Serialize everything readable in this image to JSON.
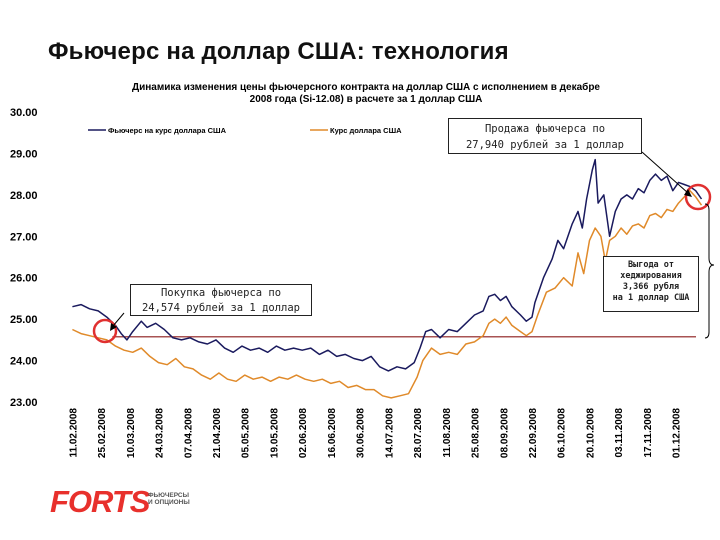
{
  "slide": {
    "title": "Фьючерс на доллар США: технология"
  },
  "annotations": {
    "buy": [
      "Покупка фьючерса по",
      "24,574 рублей за 1 доллар"
    ],
    "sell": [
      "Продажа фьючерса по",
      "27,940 рублей за 1 доллар"
    ],
    "benefit": [
      "Выгода от",
      "хеджирования",
      "3,366 рубля",
      "на 1 доллар США"
    ]
  },
  "logo": {
    "word": "FORTS",
    "sub": [
      "ФЬЮЧЕРСЫ",
      "И ОПЦИОНЫ"
    ]
  },
  "colors": {
    "futures": "#1a1a5e",
    "spot": "#e08a2a",
    "hedge_line": "#8b1a1a",
    "circle": "#e03030",
    "logo": "#e8302c"
  },
  "chart_data": {
    "type": "line",
    "title": [
      "Динамика изменения цены фьючерсного контракта на доллар США  с исполнением в декабре",
      "2008 года (Si-12.08) в расчете за 1 доллар США"
    ],
    "ylim": [
      23,
      30
    ],
    "yticks": [
      "30.00",
      "29.00",
      "28.00",
      "27.00",
      "26.00",
      "25.00",
      "24.00",
      "23.00"
    ],
    "x_ticks": [
      "11.02.2008",
      "25.02.2008",
      "10.03.2008",
      "24.03.2008",
      "07.04.2008",
      "21.04.2008",
      "05.05.2008",
      "19.05.2008",
      "02.06.2008",
      "16.06.2008",
      "30.06.2008",
      "14.07.2008",
      "28.07.2008",
      "11.08.2008",
      "25.08.2008",
      "08.09.2008",
      "22.09.2008",
      "06.10.2008",
      "20.10.2008",
      "03.11.2008",
      "17.11.2008",
      "01.12.2008"
    ],
    "legend": [
      "Фьючерс на курс доллара США",
      "Курс доллара США"
    ],
    "hedge_level": 24.574,
    "series": [
      {
        "name": "Фьючерс на курс доллара США",
        "points": [
          [
            0,
            25.3
          ],
          [
            0.3,
            25.35
          ],
          [
            0.6,
            25.25
          ],
          [
            0.9,
            25.2
          ],
          [
            1.2,
            25.05
          ],
          [
            1.5,
            24.85
          ],
          [
            1.7,
            24.65
          ],
          [
            1.9,
            24.5
          ],
          [
            2.1,
            24.7
          ],
          [
            2.4,
            24.95
          ],
          [
            2.6,
            24.8
          ],
          [
            2.9,
            24.9
          ],
          [
            3.2,
            24.75
          ],
          [
            3.5,
            24.55
          ],
          [
            3.8,
            24.5
          ],
          [
            4.1,
            24.55
          ],
          [
            4.4,
            24.45
          ],
          [
            4.7,
            24.4
          ],
          [
            5.0,
            24.5
          ],
          [
            5.3,
            24.3
          ],
          [
            5.6,
            24.2
          ],
          [
            5.9,
            24.35
          ],
          [
            6.2,
            24.25
          ],
          [
            6.5,
            24.3
          ],
          [
            6.8,
            24.2
          ],
          [
            7.1,
            24.35
          ],
          [
            7.4,
            24.25
          ],
          [
            7.7,
            24.3
          ],
          [
            8.0,
            24.25
          ],
          [
            8.3,
            24.3
          ],
          [
            8.6,
            24.15
          ],
          [
            8.9,
            24.25
          ],
          [
            9.2,
            24.1
          ],
          [
            9.5,
            24.15
          ],
          [
            9.8,
            24.05
          ],
          [
            10.1,
            24.0
          ],
          [
            10.4,
            24.1
          ],
          [
            10.7,
            23.85
          ],
          [
            11.0,
            23.75
          ],
          [
            11.3,
            23.85
          ],
          [
            11.6,
            23.8
          ],
          [
            11.9,
            23.95
          ],
          [
            12.1,
            24.3
          ],
          [
            12.3,
            24.7
          ],
          [
            12.5,
            24.75
          ],
          [
            12.8,
            24.55
          ],
          [
            13.1,
            24.75
          ],
          [
            13.4,
            24.7
          ],
          [
            13.7,
            24.9
          ],
          [
            14.0,
            25.1
          ],
          [
            14.3,
            25.2
          ],
          [
            14.5,
            25.55
          ],
          [
            14.7,
            25.6
          ],
          [
            14.9,
            25.45
          ],
          [
            15.1,
            25.55
          ],
          [
            15.3,
            25.3
          ],
          [
            15.6,
            25.1
          ],
          [
            15.8,
            24.95
          ],
          [
            16.0,
            25.05
          ],
          [
            16.1,
            25.4
          ],
          [
            16.4,
            26.0
          ],
          [
            16.7,
            26.45
          ],
          [
            16.9,
            26.9
          ],
          [
            17.1,
            26.7
          ],
          [
            17.4,
            27.3
          ],
          [
            17.6,
            27.6
          ],
          [
            17.75,
            27.2
          ],
          [
            17.9,
            27.9
          ],
          [
            18.1,
            28.6
          ],
          [
            18.2,
            28.85
          ],
          [
            18.3,
            27.8
          ],
          [
            18.5,
            28.0
          ],
          [
            18.7,
            27.0
          ],
          [
            18.9,
            27.6
          ],
          [
            19.1,
            27.9
          ],
          [
            19.3,
            28.0
          ],
          [
            19.5,
            27.9
          ],
          [
            19.7,
            28.15
          ],
          [
            19.9,
            28.05
          ],
          [
            20.1,
            28.35
          ],
          [
            20.3,
            28.5
          ],
          [
            20.5,
            28.35
          ],
          [
            20.7,
            28.45
          ],
          [
            20.9,
            28.1
          ],
          [
            21.1,
            28.3
          ],
          [
            21.3,
            28.25
          ],
          [
            21.5,
            28.2
          ],
          [
            21.7,
            28.1
          ],
          [
            21.9,
            27.9
          ]
        ]
      },
      {
        "name": "Курс доллара США",
        "points": [
          [
            0,
            24.75
          ],
          [
            0.3,
            24.65
          ],
          [
            0.6,
            24.6
          ],
          [
            0.9,
            24.55
          ],
          [
            1.2,
            24.5
          ],
          [
            1.5,
            24.35
          ],
          [
            1.8,
            24.25
          ],
          [
            2.1,
            24.2
          ],
          [
            2.4,
            24.3
          ],
          [
            2.7,
            24.1
          ],
          [
            3.0,
            23.95
          ],
          [
            3.3,
            23.9
          ],
          [
            3.6,
            24.05
          ],
          [
            3.9,
            23.85
          ],
          [
            4.2,
            23.8
          ],
          [
            4.5,
            23.65
          ],
          [
            4.8,
            23.55
          ],
          [
            5.1,
            23.7
          ],
          [
            5.4,
            23.55
          ],
          [
            5.7,
            23.5
          ],
          [
            6.0,
            23.65
          ],
          [
            6.3,
            23.55
          ],
          [
            6.6,
            23.6
          ],
          [
            6.9,
            23.5
          ],
          [
            7.2,
            23.6
          ],
          [
            7.5,
            23.55
          ],
          [
            7.8,
            23.65
          ],
          [
            8.1,
            23.55
          ],
          [
            8.4,
            23.5
          ],
          [
            8.7,
            23.55
          ],
          [
            9.0,
            23.45
          ],
          [
            9.3,
            23.5
          ],
          [
            9.6,
            23.35
          ],
          [
            9.9,
            23.4
          ],
          [
            10.2,
            23.3
          ],
          [
            10.5,
            23.3
          ],
          [
            10.8,
            23.15
          ],
          [
            11.1,
            23.1
          ],
          [
            11.4,
            23.15
          ],
          [
            11.7,
            23.2
          ],
          [
            12.0,
            23.6
          ],
          [
            12.2,
            24.0
          ],
          [
            12.5,
            24.3
          ],
          [
            12.8,
            24.15
          ],
          [
            13.1,
            24.2
          ],
          [
            13.4,
            24.15
          ],
          [
            13.7,
            24.4
          ],
          [
            14.0,
            24.45
          ],
          [
            14.3,
            24.6
          ],
          [
            14.5,
            24.9
          ],
          [
            14.7,
            25.0
          ],
          [
            14.9,
            24.9
          ],
          [
            15.1,
            25.05
          ],
          [
            15.3,
            24.85
          ],
          [
            15.6,
            24.7
          ],
          [
            15.8,
            24.6
          ],
          [
            16.0,
            24.7
          ],
          [
            16.2,
            25.1
          ],
          [
            16.5,
            25.65
          ],
          [
            16.8,
            25.75
          ],
          [
            17.1,
            26.0
          ],
          [
            17.4,
            25.8
          ],
          [
            17.6,
            26.6
          ],
          [
            17.8,
            26.1
          ],
          [
            18.0,
            26.9
          ],
          [
            18.2,
            27.2
          ],
          [
            18.4,
            27.0
          ],
          [
            18.55,
            26.4
          ],
          [
            18.7,
            26.9
          ],
          [
            18.9,
            27.0
          ],
          [
            19.1,
            27.2
          ],
          [
            19.3,
            27.05
          ],
          [
            19.5,
            27.25
          ],
          [
            19.7,
            27.3
          ],
          [
            19.9,
            27.2
          ],
          [
            20.1,
            27.5
          ],
          [
            20.3,
            27.55
          ],
          [
            20.5,
            27.45
          ],
          [
            20.7,
            27.65
          ],
          [
            20.9,
            27.6
          ],
          [
            21.1,
            27.8
          ],
          [
            21.3,
            27.95
          ],
          [
            21.5,
            28.1
          ],
          [
            21.7,
            27.95
          ],
          [
            21.9,
            27.75
          ]
        ]
      }
    ]
  }
}
